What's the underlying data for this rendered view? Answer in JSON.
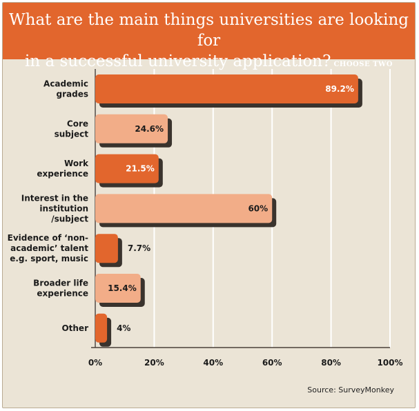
{
  "header": {
    "title_line1": "What are the main things universities are looking for",
    "title_line2": "in a successful university application?",
    "subtitle": "CHOOSE TWO"
  },
  "source": "Source: SurveyMonkey",
  "colors": {
    "dark_bar": "#e2662d",
    "light_bar": "#f2ad88",
    "background": "#ebe4d6",
    "shadow": "#3a332d"
  },
  "chart_data": {
    "type": "bar",
    "orientation": "horizontal",
    "categories": [
      [
        "Academic",
        "grades"
      ],
      [
        "Core",
        "subject"
      ],
      [
        "Work",
        "experience"
      ],
      [
        "Interest in the",
        "institution",
        "/subject"
      ],
      [
        "Evidence of ‘non-",
        "academic’ talent",
        "e.g. sport, music"
      ],
      [
        "Broader life",
        "experience"
      ],
      [
        "Other"
      ]
    ],
    "values": [
      89.2,
      24.6,
      21.5,
      60,
      7.7,
      15.4,
      4
    ],
    "value_labels": [
      "89.2%",
      "24.6%",
      "21.5%",
      "60%",
      "7.7%",
      "15.4%",
      "4%"
    ],
    "bar_styles": [
      "dark",
      "light",
      "dark",
      "light",
      "dark",
      "light",
      "dark"
    ],
    "xlim": [
      0,
      100
    ],
    "ticks": [
      "0%",
      "20%",
      "40%",
      "60%",
      "80%",
      "100%"
    ],
    "grid": true
  }
}
